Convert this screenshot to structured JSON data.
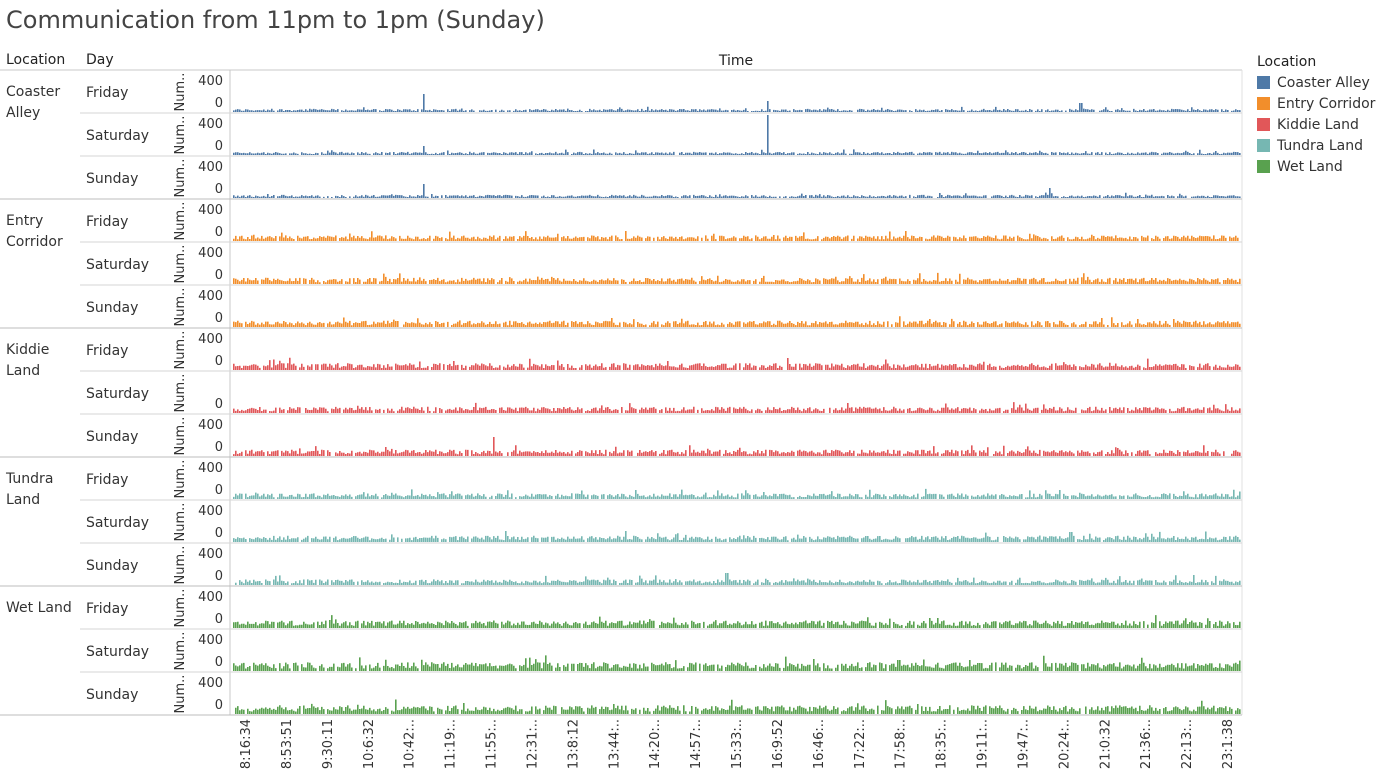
{
  "title": "Communication from 11pm to 1pm (Sunday)",
  "header": {
    "location": "Location",
    "day": "Day",
    "time": "Time"
  },
  "legend": {
    "title": "Location",
    "items": [
      {
        "label": "Coaster Alley",
        "color": "#4e79a7"
      },
      {
        "label": "Entry Corridor",
        "color": "#f28e2b"
      },
      {
        "label": "Kiddie Land",
        "color": "#e15759"
      },
      {
        "label": "Tundra Land",
        "color": "#76b7b2"
      },
      {
        "label": "Wet Land",
        "color": "#59a14f"
      }
    ]
  },
  "chart_data": {
    "type": "bar",
    "layout": "small-multiples",
    "title": "Communication from 11pm to 1pm (Sunday)",
    "row_header": "Location",
    "sub_row_header": "Day",
    "xlabel": "Time",
    "ylabel": "Num..",
    "y_ticks": [
      "400",
      "0"
    ],
    "ylim": [
      0,
      400
    ],
    "x_tick_labels": [
      "8:16:34",
      "8:53:51",
      "9:30:11",
      "10:6:32",
      "10:42:..",
      "11:19:..",
      "11:55:..",
      "12:31:..",
      "13:8:12",
      "13:44:..",
      "14:20:..",
      "14:57:..",
      "15:33:..",
      "16:9:52",
      "16:46:..",
      "17:22:..",
      "17:58:..",
      "18:35:..",
      "19:11:..",
      "19:47:..",
      "20:24:..",
      "21:0:32",
      "21:36:..",
      "22:13:..",
      "23:1:38"
    ],
    "panels": [
      {
        "location": "Coaster Alley",
        "days": [
          {
            "day": "Friday",
            "show_400": true,
            "baseline": 25,
            "spikes": [
              [
                0.19,
                180
              ],
              [
                0.53,
                110
              ],
              [
                0.84,
                90
              ]
            ]
          },
          {
            "day": "Saturday",
            "show_400": true,
            "baseline": 25,
            "spikes": [
              [
                0.19,
                90
              ],
              [
                0.53,
                400
              ]
            ]
          },
          {
            "day": "Sunday",
            "show_400": true,
            "baseline": 25,
            "spikes": [
              [
                0.19,
                140
              ],
              [
                0.81,
                100
              ]
            ]
          }
        ]
      },
      {
        "location": "Entry Corridor",
        "days": [
          {
            "day": "Friday",
            "show_400": true,
            "baseline": 45,
            "spikes": [
              [
                0.39,
                100
              ]
            ]
          },
          {
            "day": "Saturday",
            "show_400": true,
            "baseline": 50,
            "spikes": []
          },
          {
            "day": "Sunday",
            "show_400": true,
            "baseline": 50,
            "spikes": [
              [
                0.86,
                90
              ]
            ]
          }
        ]
      },
      {
        "location": "Kiddie Land",
        "days": [
          {
            "day": "Friday",
            "show_400": true,
            "baseline": 55,
            "spikes": [
              [
                0.22,
                90
              ]
            ]
          },
          {
            "day": "Saturday",
            "show_400": false,
            "baseline": 50,
            "spikes": [
              [
                0.61,
                100
              ]
            ]
          },
          {
            "day": "Sunday",
            "show_400": true,
            "baseline": 50,
            "spikes": [
              [
                0.26,
                190
              ]
            ]
          }
        ]
      },
      {
        "location": "Tundra Land",
        "days": [
          {
            "day": "Friday",
            "show_400": true,
            "baseline": 45,
            "spikes": [
              [
                0.4,
                90
              ],
              [
                0.82,
                90
              ]
            ]
          },
          {
            "day": "Saturday",
            "show_400": true,
            "baseline": 50,
            "spikes": [
              [
                0.39,
                110
              ],
              [
                0.83,
                100
              ]
            ]
          },
          {
            "day": "Sunday",
            "show_400": true,
            "baseline": 45,
            "spikes": [
              [
                0.49,
                120
              ]
            ]
          }
        ]
      },
      {
        "location": "Wet Land",
        "days": [
          {
            "day": "Friday",
            "show_400": true,
            "baseline": 60,
            "spikes": [
              [
                0.69,
                100
              ]
            ]
          },
          {
            "day": "Saturday",
            "show_400": true,
            "baseline": 70,
            "spikes": [
              [
                0.66,
                110
              ],
              [
                0.73,
                110
              ]
            ]
          },
          {
            "day": "Sunday",
            "show_400": true,
            "baseline": 70,
            "spikes": [
              [
                0.23,
                110
              ],
              [
                0.68,
                100
              ]
            ]
          }
        ]
      }
    ]
  }
}
